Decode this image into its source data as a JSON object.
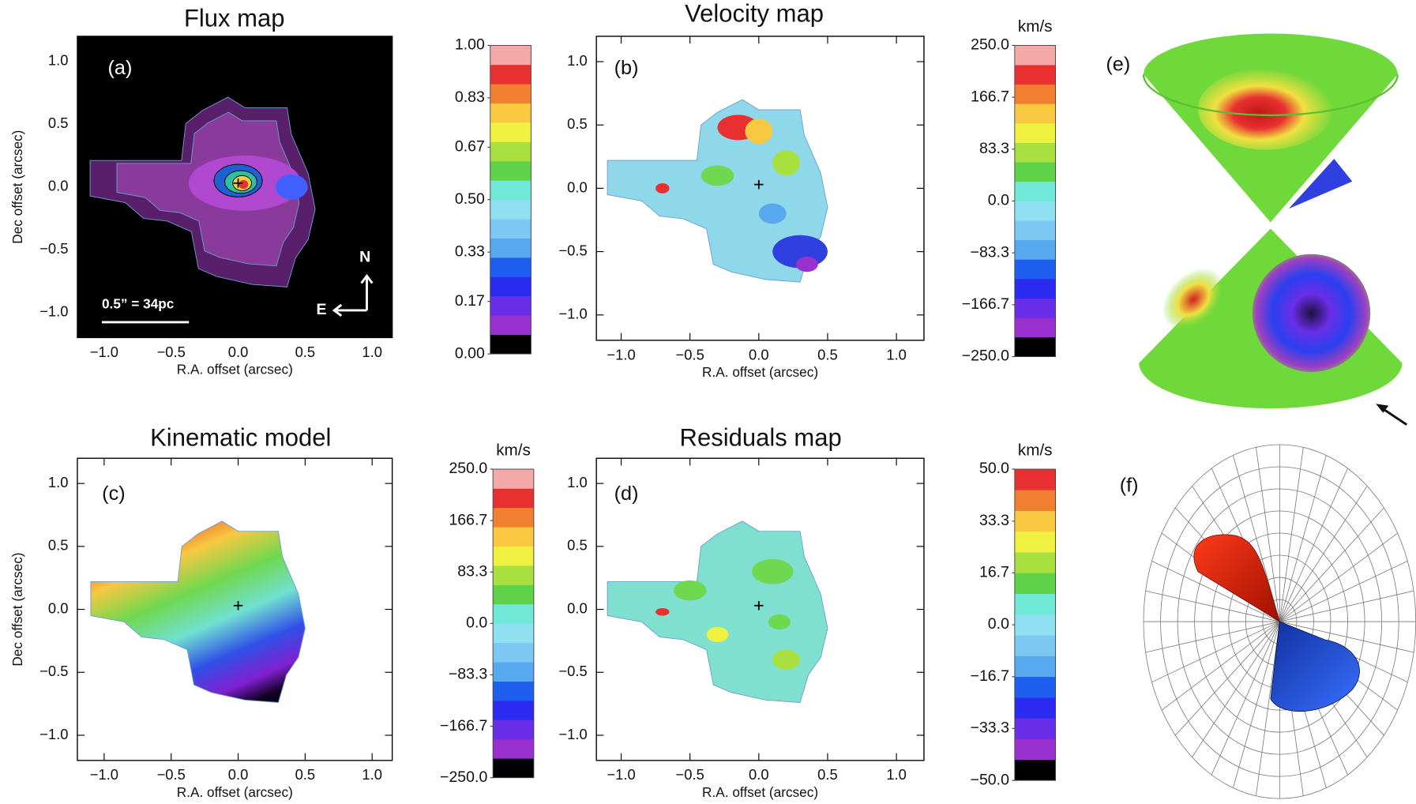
{
  "chart_data": [
    {
      "type": "map",
      "panel_label": "(a)",
      "title": "Flux map",
      "xlabel": "R.A. offset (arcsec)",
      "ylabel": "Dec offset (arcsec)",
      "xlim": [
        -1.2,
        1.15
      ],
      "ylim": [
        -1.2,
        1.2
      ],
      "xticks": [
        {
          "value": -1,
          "label": "−1.0"
        },
        {
          "value": -0.5,
          "label": "−0.5"
        },
        {
          "value": 0,
          "label": "0.0"
        },
        0.5,
        {
          "value": 1,
          "label": "1.0"
        }
      ],
      "yticks": [
        {
          "value": -1,
          "label": "−1.0"
        },
        {
          "value": -0.5,
          "label": "−0.5"
        },
        {
          "value": 0,
          "label": "0.0"
        },
        0.5,
        {
          "value": 1,
          "label": "1.0"
        }
      ],
      "colorbar": {
        "lim": [
          0,
          1
        ],
        "ticks": [
          {
            "value": 0,
            "label": "0.00"
          },
          0.17,
          0.33,
          {
            "value": 0.5,
            "label": "0.50"
          },
          0.67,
          0.83,
          {
            "value": 1,
            "label": "1.00"
          }
        ],
        "colors": [
          "#000000",
          "#9b30d0",
          "#6a2ee8",
          "#2a2af0",
          "#1f5ff0",
          "#58a8f0",
          "#7cc8f2",
          "#8fe0f0",
          "#70e8d8",
          "#5fd24a",
          "#a8e040",
          "#f0f040",
          "#f8c840",
          "#f08030",
          "#e83030",
          "#f4a8a8"
        ]
      },
      "annotations": {
        "scale_bar": "0.5” = 34pc",
        "north": "N",
        "east": "E"
      }
    },
    {
      "type": "map",
      "panel_label": "(b)",
      "title": "Velocity map",
      "xlabel": "R.A. offset (arcsec)",
      "xlim": [
        -1.18,
        1.2
      ],
      "ylim": [
        -1.2,
        1.2
      ],
      "xticks": [
        {
          "value": -1,
          "label": "−1.0"
        },
        {
          "value": -0.5,
          "label": "−0.5"
        },
        {
          "value": 0,
          "label": "0.0"
        },
        0.5,
        {
          "value": 1,
          "label": "1.0"
        }
      ],
      "yticks": [
        {
          "value": -1,
          "label": "−1.0"
        },
        {
          "value": -0.5,
          "label": "−0.5"
        },
        {
          "value": 0,
          "label": "0.0"
        },
        0.5,
        {
          "value": 1,
          "label": "1.0"
        }
      ],
      "colorbar": {
        "unit": "km/s",
        "lim": [
          -250,
          250
        ],
        "ticks": [
          {
            "value": -250,
            "label": "−250.0"
          },
          {
            "value": -166.7,
            "label": "−166.7"
          },
          {
            "value": -83.3,
            "label": "−83.3"
          },
          {
            "value": 0,
            "label": "0.0"
          },
          83.3,
          166.7,
          {
            "value": 250,
            "label": "250.0"
          }
        ],
        "colors": [
          "#000000",
          "#9b30d0",
          "#6a2ee8",
          "#2a2af0",
          "#1f5ff0",
          "#58a8f0",
          "#7cc8f2",
          "#8fe0f0",
          "#70e8d8",
          "#5fd24a",
          "#a8e040",
          "#f0f040",
          "#f8c840",
          "#f08030",
          "#e83030",
          "#f4a8a8"
        ]
      }
    },
    {
      "type": "map",
      "panel_label": "(c)",
      "title": "Kinematic model",
      "xlabel": "R.A. offset (arcsec)",
      "ylabel": "Dec offset (arcsec)",
      "xlim": [
        -1.2,
        1.15
      ],
      "ylim": [
        -1.2,
        1.2
      ],
      "xticks": [
        {
          "value": -1,
          "label": "−1.0"
        },
        {
          "value": -0.5,
          "label": "−0.5"
        },
        {
          "value": 0,
          "label": "0.0"
        },
        0.5,
        {
          "value": 1,
          "label": "1.0"
        }
      ],
      "yticks": [
        {
          "value": -1,
          "label": "−1.0"
        },
        {
          "value": -0.5,
          "label": "−0.5"
        },
        {
          "value": 0,
          "label": "0.0"
        },
        0.5,
        {
          "value": 1,
          "label": "1.0"
        }
      ],
      "colorbar": {
        "unit": "km/s",
        "lim": [
          -250,
          250
        ],
        "ticks": [
          {
            "value": -250,
            "label": "−250.0"
          },
          {
            "value": -166.7,
            "label": "−166.7"
          },
          {
            "value": -83.3,
            "label": "−83.3"
          },
          {
            "value": 0,
            "label": "0.0"
          },
          83.3,
          166.7,
          {
            "value": 250,
            "label": "250.0"
          }
        ],
        "colors": [
          "#000000",
          "#9b30d0",
          "#6a2ee8",
          "#2a2af0",
          "#1f5ff0",
          "#58a8f0",
          "#7cc8f2",
          "#8fe0f0",
          "#70e8d8",
          "#5fd24a",
          "#a8e040",
          "#f0f040",
          "#f8c840",
          "#f08030",
          "#e83030",
          "#f4a8a8"
        ]
      }
    },
    {
      "type": "map",
      "panel_label": "(d)",
      "title": "Residuals map",
      "xlabel": "R.A. offset (arcsec)",
      "xlim": [
        -1.18,
        1.2
      ],
      "ylim": [
        -1.2,
        1.2
      ],
      "xticks": [
        {
          "value": -1,
          "label": "−1.0"
        },
        {
          "value": -0.5,
          "label": "−0.5"
        },
        {
          "value": 0,
          "label": "0.0"
        },
        0.5,
        {
          "value": 1,
          "label": "1.0"
        }
      ],
      "yticks": [
        {
          "value": -1,
          "label": "−1.0"
        },
        {
          "value": -0.5,
          "label": "−0.5"
        },
        {
          "value": 0,
          "label": "0.0"
        },
        0.5,
        {
          "value": 1,
          "label": "1.0"
        }
      ],
      "colorbar": {
        "unit": "km/s",
        "lim": [
          -50,
          50
        ],
        "ticks": [
          {
            "value": -50,
            "label": "−50.0"
          },
          {
            "value": -33.3,
            "label": "−33.3"
          },
          {
            "value": -16.7,
            "label": "−16.7"
          },
          {
            "value": 0,
            "label": "0.0"
          },
          16.7,
          33.3,
          {
            "value": 50,
            "label": "50.0"
          }
        ],
        "colors": [
          "#000000",
          "#9b30d0",
          "#6a2ee8",
          "#2a2af0",
          "#1f5ff0",
          "#58a8f0",
          "#7cc8f2",
          "#8fe0f0",
          "#70e8d8",
          "#5fd24a",
          "#a8e040",
          "#f0f040",
          "#f8c840",
          "#f08030",
          "#e83030"
        ]
      }
    },
    {
      "type": "diagram",
      "panel_label": "(e)"
    },
    {
      "type": "diagram",
      "panel_label": "(f)"
    }
  ]
}
